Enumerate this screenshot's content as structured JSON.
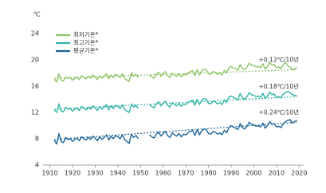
{
  "chart_data": {
    "type": "line",
    "unit": "℃",
    "x": [
      1912,
      1913,
      1914,
      1915,
      1916,
      1917,
      1918,
      1919,
      1920,
      1921,
      1922,
      1923,
      1924,
      1925,
      1926,
      1927,
      1928,
      1929,
      1930,
      1931,
      1932,
      1933,
      1934,
      1935,
      1936,
      1937,
      1938,
      1939,
      1940,
      1941,
      1942,
      1943,
      1944,
      1945,
      1946,
      1947,
      1948,
      1949,
      1950,
      1951,
      1952,
      1953,
      1954,
      1955,
      1956,
      1957,
      1958,
      1959,
      1960,
      1961,
      1962,
      1963,
      1964,
      1965,
      1966,
      1967,
      1968,
      1969,
      1970,
      1971,
      1972,
      1973,
      1974,
      1975,
      1976,
      1977,
      1978,
      1979,
      1980,
      1981,
      1982,
      1983,
      1984,
      1985,
      1986,
      1987,
      1988,
      1989,
      1990,
      1991,
      1992,
      1993,
      1994,
      1995,
      1996,
      1997,
      1998,
      1999,
      2000,
      2001,
      2002,
      2003,
      2004,
      2005,
      2006,
      2007,
      2008,
      2009,
      2010,
      2011,
      2012,
      2013,
      2014,
      2015,
      2016,
      2017,
      2018,
      2019
    ],
    "trend_x": [
      1912,
      2019
    ],
    "series": [
      {
        "name": "최저기온*",
        "color": "#8dc466",
        "trend": [
          17.2,
          18.5
        ],
        "trend_label": "+0.12℃/10년",
        "values": [
          17.1,
          16.6,
          17.9,
          16.9,
          16.8,
          17.4,
          17.2,
          17.3,
          16.9,
          17.2,
          17.4,
          17.0,
          17.6,
          17.3,
          17.1,
          17.5,
          17.2,
          17.7,
          17.4,
          17.0,
          17.6,
          17.2,
          17.5,
          17.9,
          17.1,
          17.7,
          17.3,
          17.8,
          17.6,
          17.3,
          17.9,
          17.2,
          16.9,
          16.7,
          18.0,
          17.5,
          17.8,
          17.3,
          null,
          null,
          null,
          null,
          17.7,
          17.4,
          17.2,
          17.8,
          18.1,
          17.5,
          17.9,
          18.2,
          17.6,
          17.3,
          18.0,
          17.7,
          17.5,
          17.9,
          17.4,
          17.8,
          17.7,
          18.0,
          18.2,
          18.4,
          17.6,
          18.5,
          17.7,
          18.3,
          18.6,
          18.5,
          17.9,
          17.8,
          18.2,
          18.1,
          17.8,
          18.0,
          17.7,
          18.4,
          18.0,
          18.8,
          19.0,
          18.8,
          18.6,
          18.4,
          19.3,
          18.7,
          18.5,
          18.9,
          19.5,
          19.2,
          19.1,
          18.9,
          19.0,
          18.8,
          19.4,
          18.6,
          19.0,
          19.6,
          19.2,
          19.3,
          18.8,
          18.9,
          18.7,
          19.3,
          19.6,
          19.1,
          18.9,
          18.5,
          18.6,
          18.8
        ]
      },
      {
        "name": "최고기온*",
        "color": "#2fb3a6",
        "trend": [
          12.5,
          14.4
        ],
        "trend_label": "+0.18℃/10년",
        "values": [
          12.4,
          12.0,
          13.3,
          12.2,
          12.1,
          12.8,
          12.5,
          12.6,
          12.2,
          12.5,
          12.7,
          12.3,
          12.9,
          12.6,
          12.4,
          12.8,
          12.5,
          13.0,
          12.7,
          12.3,
          12.9,
          12.5,
          12.8,
          13.2,
          12.4,
          13.0,
          12.6,
          13.1,
          12.9,
          12.6,
          13.2,
          12.5,
          12.2,
          12.0,
          13.3,
          12.8,
          13.1,
          12.6,
          null,
          null,
          null,
          null,
          13.2,
          12.9,
          12.7,
          13.3,
          13.6,
          13.0,
          13.4,
          13.7,
          13.1,
          12.8,
          13.5,
          13.2,
          13.0,
          13.4,
          12.9,
          13.3,
          13.2,
          13.5,
          13.7,
          13.9,
          13.1,
          14.0,
          13.2,
          13.8,
          14.1,
          14.0,
          13.4,
          13.3,
          13.7,
          13.6,
          13.3,
          13.5,
          13.2,
          13.9,
          13.5,
          14.3,
          14.5,
          14.3,
          14.1,
          13.9,
          14.9,
          14.2,
          14.0,
          14.4,
          15.0,
          14.7,
          14.6,
          14.4,
          14.5,
          14.3,
          14.9,
          14.1,
          14.5,
          15.1,
          14.7,
          14.8,
          14.3,
          14.4,
          14.2,
          14.8,
          15.0,
          15.2,
          15.0,
          14.7,
          14.6,
          14.5
        ]
      },
      {
        "name": "평균기온*",
        "color": "#1d6496",
        "trend": [
          7.9,
          10.5
        ],
        "trend_label": "+0.24℃/10년",
        "values": [
          7.8,
          7.2,
          8.8,
          7.6,
          7.4,
          8.2,
          7.9,
          8.0,
          7.6,
          7.9,
          8.1,
          7.7,
          8.3,
          8.0,
          7.8,
          8.2,
          7.9,
          8.4,
          8.1,
          7.7,
          8.3,
          7.9,
          8.2,
          8.6,
          7.8,
          8.4,
          8.0,
          8.5,
          8.3,
          8.0,
          8.6,
          7.9,
          7.6,
          7.3,
          8.7,
          8.2,
          8.5,
          8.0,
          null,
          null,
          null,
          null,
          8.6,
          8.3,
          8.1,
          8.7,
          9.0,
          8.4,
          8.8,
          9.1,
          8.5,
          8.2,
          8.9,
          8.6,
          8.4,
          8.8,
          8.3,
          8.7,
          8.6,
          8.9,
          9.1,
          9.3,
          8.5,
          9.4,
          8.6,
          9.2,
          9.5,
          9.4,
          8.8,
          8.7,
          9.1,
          9.0,
          8.7,
          8.9,
          8.6,
          9.3,
          8.9,
          9.7,
          10.0,
          9.8,
          9.6,
          9.4,
          10.3,
          9.7,
          9.5,
          9.9,
          10.5,
          10.2,
          10.1,
          9.9,
          10.0,
          9.8,
          10.4,
          9.6,
          10.0,
          10.6,
          10.2,
          10.3,
          9.8,
          9.9,
          9.7,
          10.3,
          10.6,
          10.8,
          10.9,
          10.4,
          10.6,
          10.8
        ]
      }
    ],
    "xlim": [
      1907,
      2022
    ],
    "xticks": [
      1910,
      1920,
      1930,
      1940,
      1950,
      1960,
      1970,
      1980,
      1990,
      2000,
      2010,
      2020
    ],
    "ylim": [
      4,
      24
    ],
    "yticks": [
      4,
      8,
      12,
      16,
      20,
      24
    ]
  }
}
